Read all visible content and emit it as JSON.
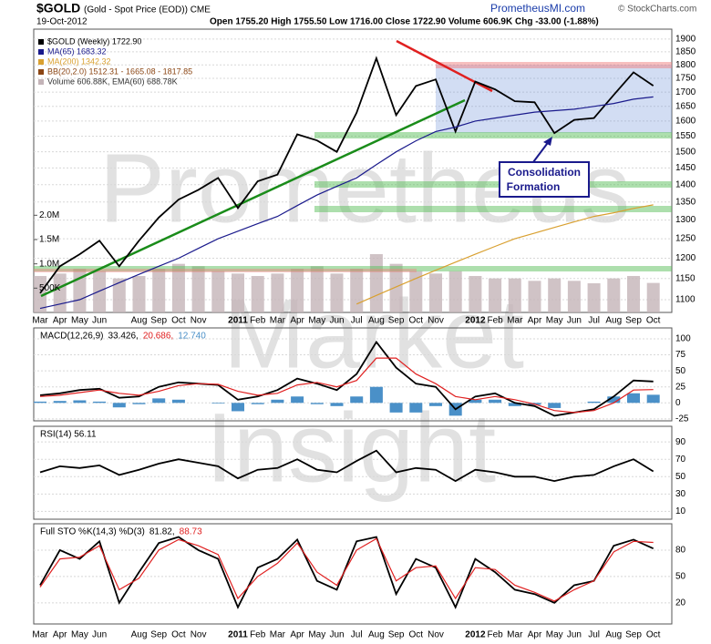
{
  "header": {
    "symbol": "$GOLD",
    "description": "(Gold - Spot Price (EOD)) CME",
    "date": "19-Oct-2012",
    "quote": "Open 1755.20  High 1755.50  Low 1716.00  Close 1722.90  Volume 606.9K  Chg -33.00 (-1.88%)",
    "site": "PrometheusMI.com",
    "credit": "© StockCharts.com"
  },
  "watermark": [
    "Prometheus",
    "Market",
    "Insight"
  ],
  "annotation": [
    "Consolidation",
    "Formation"
  ],
  "chart_data": [
    {
      "type": "line",
      "log_scale": true,
      "grid": true,
      "categories": [
        "Mar",
        "Apr",
        "May",
        "Jun",
        null,
        "Aug",
        "Sep",
        "Oct",
        "Nov",
        null,
        "2011",
        "Feb",
        "Mar",
        "Apr",
        "May",
        "Jun",
        "Jul",
        "Aug",
        "Sep",
        "Oct",
        "Nov",
        null,
        "2012",
        "Feb",
        "Mar",
        "Apr",
        "May",
        "Jun",
        "Jul",
        "Aug",
        "Sep",
        "Oct"
      ],
      "ylim": [
        1071,
        1940
      ],
      "yticks": [
        1100,
        1150,
        1200,
        1250,
        1300,
        1350,
        1400,
        1450,
        1500,
        1550,
        1600,
        1650,
        1700,
        1750,
        1800,
        1850,
        1900
      ],
      "y2lim": [
        0,
        5830000
      ],
      "y2ticks": [
        {
          "value": 500000,
          "label": "500K"
        },
        {
          "value": 1000000,
          "label": "1.0M"
        },
        {
          "value": 1500000,
          "label": "1.5M"
        },
        {
          "value": 2000000,
          "label": "2.0M"
        }
      ],
      "bb_label": "BB(20,2.0) 1512.31 - 1665.08 - 1817.85",
      "series": [
        {
          "name": "$GOLD (Weekly) 1722.90",
          "color": "#000000",
          "values": [
            1115,
            1180,
            1210,
            1245,
            1180,
            1245,
            1307,
            1357,
            1385,
            1420,
            1333,
            1410,
            1430,
            1556,
            1536,
            1500,
            1628,
            1825,
            1620,
            1722,
            1746,
            1565,
            1738,
            1710,
            1668,
            1664,
            1560,
            1604,
            1610,
            1690,
            1772,
            1723
          ]
        },
        {
          "name": "MA(65) 1683.32",
          "color": "#1a1a8c",
          "values": [
            1080,
            1090,
            1100,
            1120,
            1140,
            1160,
            1180,
            1200,
            1225,
            1250,
            1270,
            1290,
            1310,
            1340,
            1370,
            1395,
            1420,
            1460,
            1500,
            1535,
            1565,
            1580,
            1600,
            1610,
            1620,
            1630,
            1635,
            1640,
            1650,
            1660,
            1675,
            1683
          ]
        },
        {
          "name": "MA(200) 1342.32",
          "color": "#d9a030",
          "values": [
            null,
            null,
            null,
            null,
            null,
            null,
            null,
            null,
            null,
            null,
            null,
            null,
            null,
            null,
            null,
            null,
            1090,
            1110,
            1130,
            1150,
            1170,
            1190,
            1210,
            1230,
            1250,
            1265,
            1280,
            1295,
            1310,
            1320,
            1332,
            1342
          ]
        },
        {
          "name": "Volume 606.88K, EMA(60) 688.78K",
          "type": "bar",
          "axis": "y2",
          "color": "#c4b4b8",
          "values": [
            750000,
            800000,
            900000,
            850000,
            700000,
            750000,
            900000,
            1000000,
            950000,
            850000,
            800000,
            750000,
            800000,
            900000,
            950000,
            800000,
            900000,
            1200000,
            1000000,
            850000,
            800000,
            850000,
            750000,
            700000,
            700000,
            650000,
            700000,
            650000,
            600000,
            700000,
            750000,
            607000
          ]
        }
      ]
    },
    {
      "type": "line",
      "title": "MACD(12,26,9)",
      "ylim": [
        -28,
        117
      ],
      "yticks": [
        -25,
        0,
        25,
        50,
        75,
        100
      ],
      "grid": true,
      "series": [
        {
          "name": "33.426,",
          "color": "#000000",
          "values": [
            12,
            15,
            20,
            22,
            8,
            10,
            25,
            32,
            30,
            28,
            5,
            10,
            20,
            38,
            30,
            20,
            45,
            95,
            55,
            30,
            25,
            -10,
            10,
            15,
            0,
            -5,
            -20,
            -15,
            -10,
            10,
            35,
            33.4
          ]
        },
        {
          "name": "20.686,",
          "color": "#e02020",
          "values": [
            10,
            12,
            16,
            20,
            15,
            12,
            18,
            27,
            30,
            29,
            18,
            12,
            15,
            28,
            32,
            25,
            35,
            70,
            70,
            45,
            30,
            10,
            5,
            10,
            5,
            -2,
            -12,
            -15,
            -12,
            0,
            20,
            20.7
          ]
        },
        {
          "name": "12.740",
          "type": "bar",
          "color": "#4a90c8",
          "values": [
            2,
            3,
            4,
            2,
            -7,
            -2,
            7,
            5,
            0,
            -1,
            -13,
            -2,
            5,
            10,
            -2,
            -5,
            10,
            25,
            -15,
            -15,
            -5,
            -20,
            5,
            5,
            -5,
            -3,
            -8,
            0,
            2,
            10,
            15,
            12.7
          ]
        }
      ]
    },
    {
      "type": "line",
      "title": "RSI(14) 56.11",
      "ylim": [
        1,
        108
      ],
      "yticks": [
        10,
        30,
        50,
        70,
        90
      ],
      "grid": true,
      "series": [
        {
          "color": "#000000",
          "values": [
            55,
            62,
            60,
            63,
            52,
            58,
            65,
            70,
            66,
            62,
            48,
            58,
            60,
            70,
            58,
            55,
            68,
            80,
            55,
            60,
            58,
            45,
            58,
            55,
            50,
            50,
            45,
            50,
            52,
            62,
            70,
            56.11
          ]
        }
      ]
    },
    {
      "type": "line",
      "title": "Full STO %K(14,3) %D(3)",
      "ylim": [
        -4,
        110
      ],
      "yticks": [
        20,
        50,
        80
      ],
      "grid": true,
      "categories": [
        "Mar",
        "Apr",
        "May",
        "Jun",
        null,
        "Aug",
        "Sep",
        "Oct",
        "Nov",
        null,
        "2011",
        "Feb",
        "Mar",
        "Apr",
        "May",
        "Jun",
        "Jul",
        "Aug",
        "Sep",
        "Oct",
        "Nov",
        null,
        "2012",
        "Feb",
        "Mar",
        "Apr",
        "May",
        "Jun",
        "Jul",
        "Aug",
        "Sep",
        "Oct"
      ],
      "series": [
        {
          "name": "81.82,",
          "color": "#000000",
          "values": [
            40,
            80,
            70,
            90,
            20,
            55,
            88,
            95,
            80,
            70,
            15,
            60,
            70,
            92,
            45,
            35,
            90,
            95,
            30,
            70,
            60,
            15,
            70,
            55,
            35,
            30,
            20,
            40,
            45,
            85,
            92,
            81.82
          ]
        },
        {
          "name": "88.73",
          "color": "#e02020",
          "values": [
            38,
            70,
            72,
            85,
            35,
            48,
            80,
            92,
            85,
            75,
            25,
            50,
            65,
            88,
            55,
            40,
            80,
            93,
            45,
            60,
            62,
            25,
            60,
            58,
            40,
            32,
            22,
            35,
            45,
            78,
            90,
            88.73
          ]
        }
      ]
    }
  ]
}
